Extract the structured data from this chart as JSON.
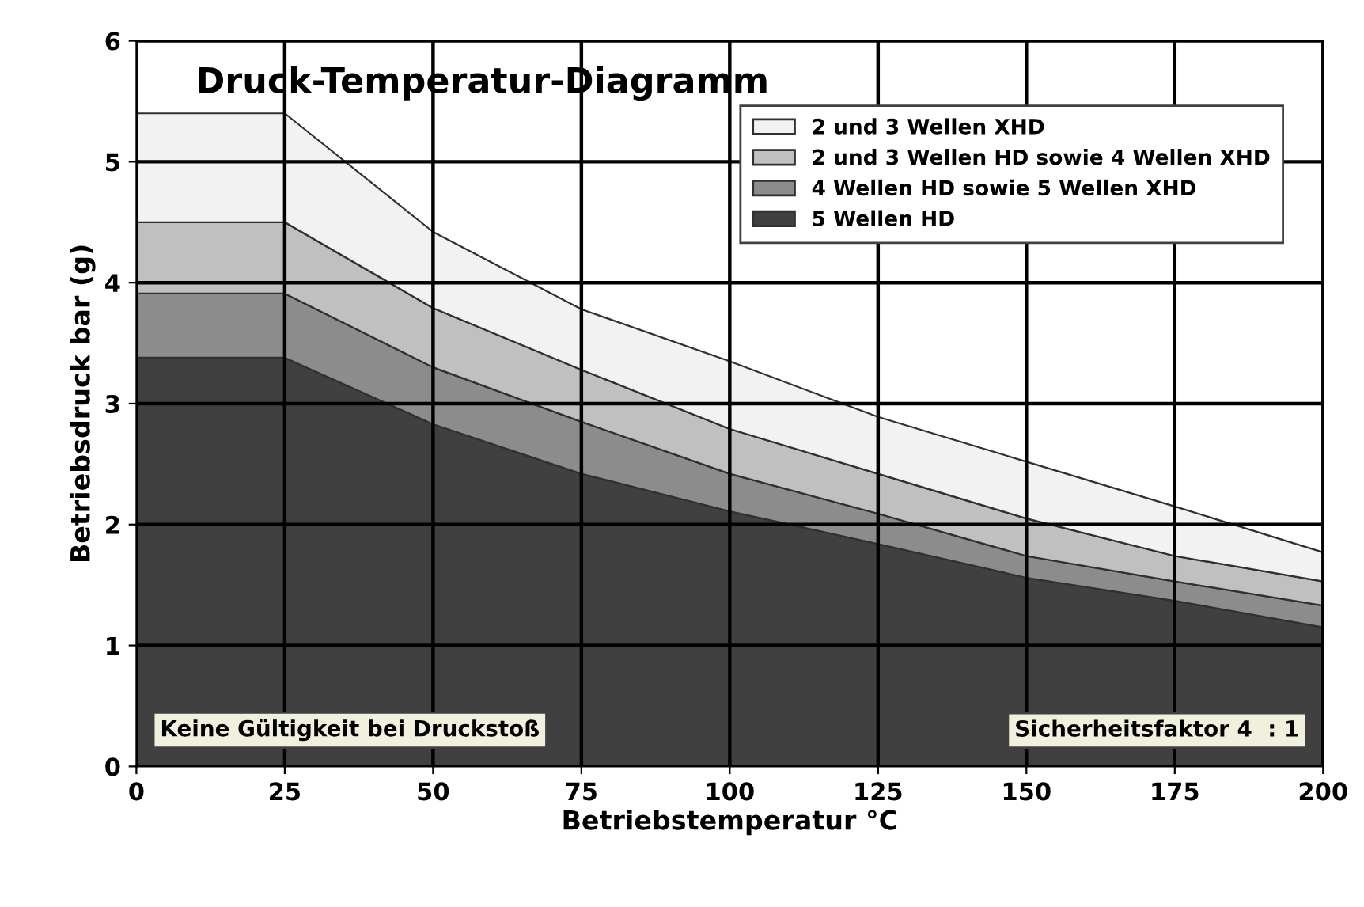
{
  "chart_data": {
    "type": "area",
    "title": "Druck-Temperatur-Diagramm",
    "xlabel": "Betriebstemperatur °C",
    "ylabel": "Betriebsdruck bar (g)",
    "x": [
      0,
      25,
      50,
      75,
      100,
      125,
      150,
      175,
      200
    ],
    "stacked": true,
    "series": [
      {
        "name": "5 Wellen HD",
        "color": "#404040",
        "values": [
          3.38,
          3.38,
          2.83,
          2.42,
          2.11,
          1.84,
          1.56,
          1.37,
          1.15
        ]
      },
      {
        "name": "4 Wellen HD sowie 5 Wellen XHD",
        "color": "#8c8c8c",
        "values": [
          0.53,
          0.53,
          0.47,
          0.43,
          0.31,
          0.25,
          0.18,
          0.16,
          0.18
        ]
      },
      {
        "name": "2 und 3 Wellen HD sowie 4 Wellen XHD",
        "color": "#c0c0c0",
        "values": [
          0.59,
          0.59,
          0.49,
          0.43,
          0.37,
          0.33,
          0.31,
          0.21,
          0.2
        ]
      },
      {
        "name": "2 und 3 Wellen XHD",
        "color": "#f2f2f2",
        "values": [
          0.9,
          0.9,
          0.63,
          0.5,
          0.56,
          0.47,
          0.47,
          0.41,
          0.24
        ]
      }
    ],
    "xlim": [
      0,
      200
    ],
    "xticks": [
      0,
      25,
      50,
      75,
      100,
      125,
      150,
      175,
      200
    ],
    "ylim": [
      0,
      6
    ],
    "yticks": [
      0,
      1,
      2,
      3,
      4,
      5,
      6
    ],
    "grid": true,
    "legend": "top right",
    "annotations": [
      "Keine Gültigkeit bei Druckstoß",
      "Sicherheitsfaktor 4  : 1"
    ]
  }
}
